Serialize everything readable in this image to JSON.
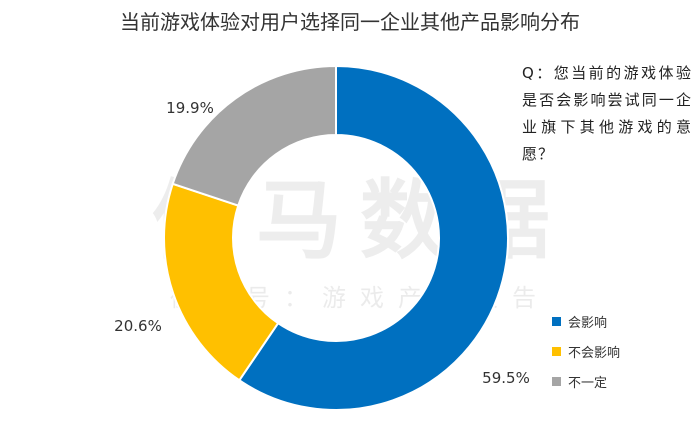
{
  "title": "当前游戏体验对用户选择同一企业其他产品影响分布",
  "question": "Q：您当前的游戏体验是否会影响尝试同一企业旗下其他游戏的意愿？",
  "watermark": {
    "main": "伽马数据",
    "sub": "微信号：游戏产业报告"
  },
  "chart_data": {
    "type": "pie",
    "subtype": "donut",
    "title": "当前游戏体验对用户选择同一企业其他产品影响分布",
    "start_angle_deg": 0,
    "direction": "clockwise",
    "legend_position": "right-bottom",
    "slices": [
      {
        "label": "会影响",
        "value": 59.5,
        "display": "59.5%",
        "color": "#0070C0"
      },
      {
        "label": "不会影响",
        "value": 20.6,
        "display": "20.6%",
        "color": "#FFC000"
      },
      {
        "label": "不一定",
        "value": 19.9,
        "display": "19.9%",
        "color": "#A5A5A5"
      }
    ]
  }
}
